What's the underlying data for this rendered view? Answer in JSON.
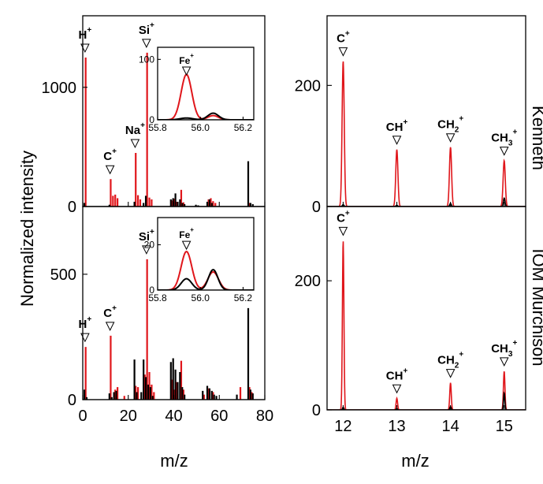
{
  "colors": {
    "red": "#e0161b",
    "black": "#000000"
  },
  "labels": {
    "ylabel": "Normalized intensity",
    "xlabel_left": "m/z",
    "xlabel_right": "m/z",
    "row_top": "Kenneth",
    "row_bottom": "IOM Murchison"
  },
  "chart_data": [
    {
      "id": "kenneth-full",
      "type": "bar",
      "xlim": [
        0,
        80
      ],
      "ylim": [
        0,
        1600
      ],
      "xticks": [
        0,
        20,
        40,
        60,
        80
      ],
      "yticks": [
        0,
        1000
      ],
      "series": [
        {
          "color": "red",
          "x": [
            1,
            12,
            13,
            14,
            15,
            23,
            24,
            25,
            28,
            29,
            30,
            39,
            40,
            41,
            43,
            44,
            55,
            56,
            57,
            58,
            73
          ],
          "values": [
            1250,
            230,
            90,
            100,
            70,
            450,
            95,
            60,
            1290,
            75,
            60,
            50,
            65,
            40,
            140,
            35,
            60,
            70,
            45,
            30,
            30
          ]
        },
        {
          "color": "black",
          "x": [
            1,
            12,
            23,
            27,
            28,
            39,
            40,
            41,
            42,
            43,
            44,
            45,
            50,
            51,
            55,
            56,
            57,
            73,
            74,
            75
          ],
          "values": [
            30,
            15,
            40,
            30,
            90,
            60,
            70,
            110,
            40,
            60,
            30,
            20,
            15,
            10,
            40,
            60,
            30,
            380,
            30,
            20
          ]
        }
      ],
      "annotations": [
        {
          "text": "H",
          "sup": "+",
          "x": 1
        },
        {
          "text": "C",
          "sup": "+",
          "x": 12
        },
        {
          "text": "Na",
          "sup": "+",
          "x": 23
        },
        {
          "text": "Si",
          "sup": "+",
          "x": 28
        }
      ]
    },
    {
      "id": "kenneth-inset",
      "type": "line",
      "xlim": [
        55.8,
        56.25
      ],
      "ylim": [
        0,
        120
      ],
      "xticks": [
        55.8,
        56.0,
        56.2
      ],
      "xtick_labels": [
        "55.8",
        "56.0",
        "56.2"
      ],
      "yticks": [
        0,
        100
      ],
      "series": [
        {
          "color": "red",
          "peaks": [
            [
              55.935,
              75,
              0.025
            ],
            [
              56.06,
              7,
              0.025
            ]
          ]
        },
        {
          "color": "black",
          "peaks": [
            [
              55.935,
              3,
              0.03
            ],
            [
              56.06,
              11,
              0.025
            ]
          ]
        }
      ],
      "annotations": [
        {
          "text": "Fe",
          "sup": "+",
          "x": 55.935
        }
      ]
    },
    {
      "id": "murchison-full",
      "type": "bar",
      "xlim": [
        0,
        80
      ],
      "ylim": [
        0,
        770
      ],
      "xticks": [
        0,
        20,
        40,
        60,
        80
      ],
      "xtick_labels": [
        "0",
        "20",
        "40",
        "60",
        "80"
      ],
      "yticks": [
        0,
        500
      ],
      "series": [
        {
          "color": "red",
          "x": [
            1,
            12,
            14,
            15,
            18,
            23,
            24,
            27,
            28,
            29,
            30,
            31,
            39,
            40,
            41,
            43,
            44,
            53,
            55,
            57,
            69,
            73,
            74
          ],
          "values": [
            210,
            255,
            40,
            50,
            15,
            55,
            50,
            100,
            560,
            110,
            60,
            30,
            80,
            40,
            70,
            155,
            40,
            20,
            45,
            30,
            50,
            50,
            30
          ]
        },
        {
          "color": "black",
          "x": [
            1,
            2,
            12,
            13,
            14,
            15,
            23,
            24,
            26,
            27,
            28,
            29,
            30,
            31,
            39,
            40,
            41,
            42,
            43,
            44,
            45,
            53,
            55,
            56,
            57,
            58,
            59,
            68,
            73,
            74,
            75
          ],
          "values": [
            40,
            10,
            25,
            10,
            30,
            35,
            160,
            30,
            30,
            160,
            90,
            60,
            50,
            15,
            150,
            165,
            120,
            70,
            110,
            50,
            20,
            35,
            55,
            45,
            35,
            20,
            15,
            20,
            365,
            40,
            25
          ]
        }
      ],
      "annotations": [
        {
          "text": "H",
          "sup": "+",
          "x": 1
        },
        {
          "text": "C",
          "sup": "+",
          "x": 12
        },
        {
          "text": "Si",
          "sup": "+",
          "x": 28
        }
      ]
    },
    {
      "id": "murchison-inset",
      "type": "line",
      "xlim": [
        55.8,
        56.25
      ],
      "ylim": [
        0,
        32
      ],
      "xticks": [
        55.8,
        56.0,
        56.2
      ],
      "xtick_labels": [
        "55.8",
        "56.0",
        "56.2"
      ],
      "yticks": [
        0,
        20
      ],
      "series": [
        {
          "color": "red",
          "peaks": [
            [
              55.935,
              17,
              0.025
            ],
            [
              56.06,
              8,
              0.025
            ]
          ]
        },
        {
          "color": "black",
          "peaks": [
            [
              55.935,
              5,
              0.025
            ],
            [
              56.06,
              9,
              0.022
            ]
          ]
        }
      ],
      "annotations": [
        {
          "text": "Fe",
          "sup": "+",
          "x": 55.935
        }
      ]
    },
    {
      "id": "kenneth-low",
      "type": "line",
      "xlim": [
        11.7,
        15.4
      ],
      "ylim": [
        0,
        315
      ],
      "xticks": [
        12,
        13,
        14,
        15
      ],
      "yticks": [
        0,
        200
      ],
      "series": [
        {
          "color": "red",
          "peaks": [
            [
              12.0,
              240,
              0.02
            ],
            [
              13.0,
              94,
              0.02
            ],
            [
              14.0,
              98,
              0.02
            ],
            [
              15.0,
              76,
              0.02
            ]
          ]
        },
        {
          "color": "black",
          "peaks": [
            [
              12.0,
              3,
              0.015
            ],
            [
              13.0,
              2,
              0.015
            ],
            [
              14.0,
              5,
              0.015
            ],
            [
              15.0,
              14,
              0.015
            ]
          ]
        }
      ],
      "annotations": [
        {
          "text": "C",
          "sup": "+",
          "x": 12.0
        },
        {
          "text": "CH",
          "sup": "+",
          "x": 13.0
        },
        {
          "text": "CH",
          "sub": "2",
          "sup": "+",
          "x": 14.0
        },
        {
          "text": "CH",
          "sub": "3",
          "sup": "+",
          "x": 15.0
        }
      ]
    },
    {
      "id": "murchison-low",
      "type": "line",
      "xlim": [
        11.7,
        15.4
      ],
      "ylim": [
        0,
        315
      ],
      "xticks": [
        12,
        13,
        14,
        15
      ],
      "xtick_labels": [
        "12",
        "13",
        "14",
        "15"
      ],
      "yticks": [
        0,
        200
      ],
      "series": [
        {
          "color": "red",
          "peaks": [
            [
              12.0,
              262,
              0.014
            ],
            [
              13.0,
              18,
              0.014
            ],
            [
              14.0,
              42,
              0.014
            ],
            [
              15.0,
              60,
              0.014
            ]
          ]
        },
        {
          "color": "black",
          "peaks": [
            [
              12.0,
              4,
              0.012
            ],
            [
              13.0,
              2,
              0.012
            ],
            [
              14.0,
              5,
              0.012
            ],
            [
              15.0,
              26,
              0.012
            ]
          ]
        }
      ],
      "annotations": [
        {
          "text": "C",
          "sup": "+",
          "x": 12.0
        },
        {
          "text": "CH",
          "sup": "+",
          "x": 13.0
        },
        {
          "text": "CH",
          "sub": "2",
          "sup": "+",
          "x": 14.0
        },
        {
          "text": "CH",
          "sub": "3",
          "sup": "+",
          "x": 15.0
        }
      ]
    }
  ]
}
